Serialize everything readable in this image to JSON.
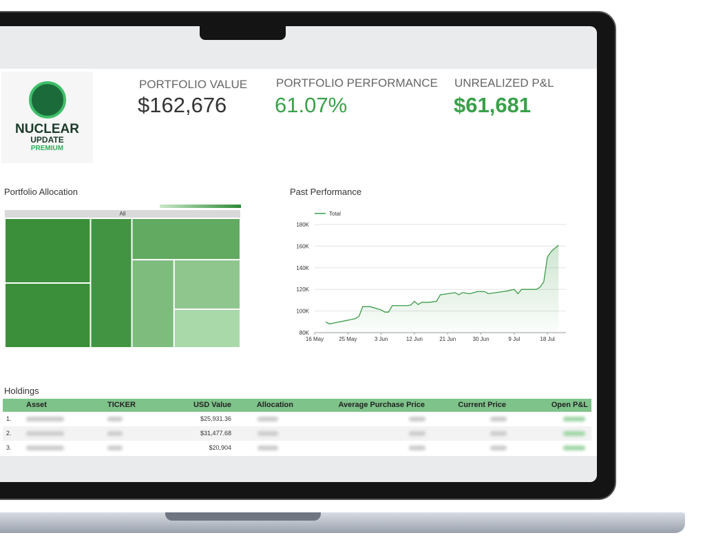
{
  "logo": {
    "line1": "NUCLEAR",
    "line2": "UPDATE",
    "line3": "PREMIUM"
  },
  "kpis": [
    {
      "label": "PORTFOLIO VALUE",
      "value": "$162,676"
    },
    {
      "label": "PORTFOLIO PERFORMANCE",
      "value": "61.07%"
    },
    {
      "label": "UNREALIZED P&L",
      "value": "$61,681"
    }
  ],
  "chart_data": [
    {
      "type": "treemap",
      "title": "Portfolio Allocation",
      "root_label": "All",
      "values": [
        11.5,
        11.5,
        11.1,
        9.3,
        7.7,
        6.8,
        5.3
      ],
      "color_range": [
        "#a9d8a9",
        "#3b8f3b"
      ]
    },
    {
      "type": "line",
      "title": "Past Performance",
      "x": [
        3,
        4,
        6,
        9,
        11,
        12,
        13,
        15,
        18,
        19,
        20,
        21,
        24,
        25,
        26,
        27,
        28,
        29,
        31,
        33,
        34,
        36,
        38,
        39,
        40,
        42,
        44,
        46,
        47,
        49,
        51,
        52,
        54,
        55,
        56,
        60,
        61,
        62,
        63,
        64,
        66
      ],
      "series": [
        {
          "name": "Total",
          "color": "#3c9a47",
          "values": [
            90000,
            88000,
            89500,
            91500,
            93000,
            95000,
            104000,
            104000,
            101000,
            99000,
            99000,
            105000,
            105000,
            105000,
            105500,
            109000,
            106000,
            108000,
            108000,
            109000,
            115000,
            116000,
            117000,
            115000,
            117000,
            116000,
            118000,
            118000,
            116000,
            117000,
            118000,
            118500,
            120000,
            116000,
            120000,
            120000,
            122000,
            127000,
            150000,
            155000,
            161000
          ]
        }
      ],
      "xlim": [
        0,
        68
      ],
      "xticks": [
        {
          "value": 0,
          "label": "16 May"
        },
        {
          "value": 9,
          "label": "25 May"
        },
        {
          "value": 18,
          "label": "3 Jun"
        },
        {
          "value": 27,
          "label": "12 Jun"
        },
        {
          "value": 36,
          "label": "21 Jun"
        },
        {
          "value": 45,
          "label": "30 Jun"
        },
        {
          "value": 54,
          "label": "9 Jul"
        },
        {
          "value": 63,
          "label": "18 Jul"
        }
      ],
      "ylim": [
        80000,
        180000
      ],
      "yticks": [
        {
          "value": 80000,
          "label": "80K"
        },
        {
          "value": 100000,
          "label": "100K"
        },
        {
          "value": 120000,
          "label": "120K"
        },
        {
          "value": 140000,
          "label": "140K"
        },
        {
          "value": 160000,
          "label": "160K"
        },
        {
          "value": 180000,
          "label": "180K"
        }
      ],
      "grid": true
    }
  ],
  "holdings": {
    "title": "Holdings",
    "columns": [
      "Asset",
      "TICKER",
      "USD Value",
      "Allocation",
      "Average Purchase Price",
      "Current Price",
      "Open P&L"
    ],
    "rows": [
      {
        "index": "1.",
        "usd_value": "$25,931.36"
      },
      {
        "index": "2.",
        "usd_value": "$31,477.68"
      },
      {
        "index": "3.",
        "usd_value": "$20,904"
      }
    ]
  }
}
